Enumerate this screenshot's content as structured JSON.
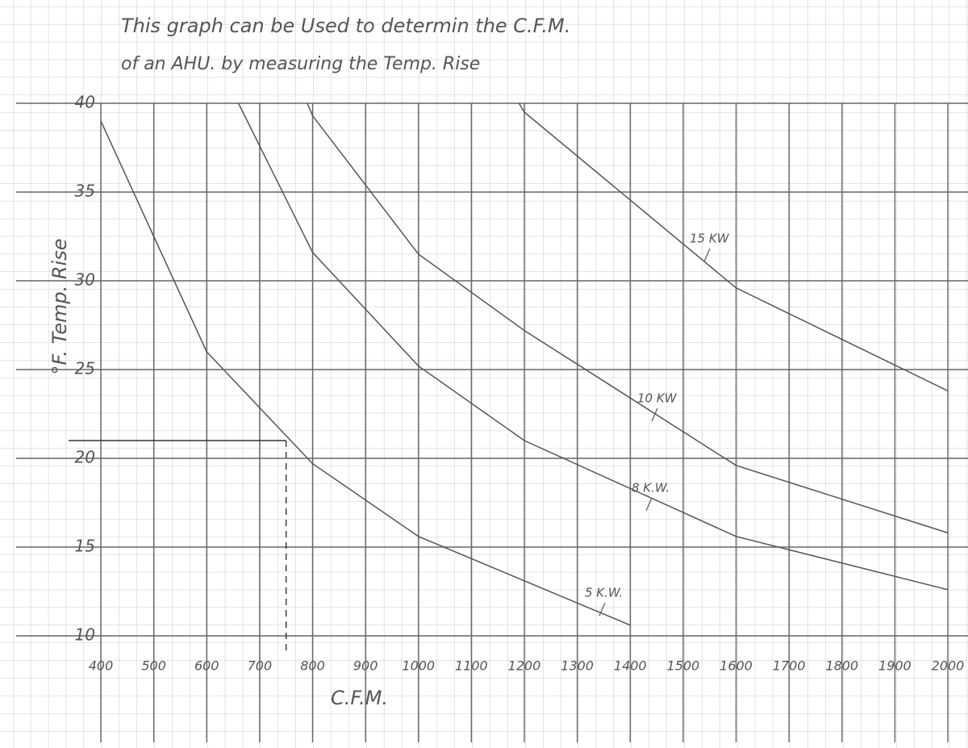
{
  "chart_data": {
    "type": "line",
    "title": "This graph can be Used to determin the C.F.M.",
    "subtitle": "of an AHU. by measuring the Temp. Rise",
    "x_label": "C.F.M.",
    "y_label": "°F. Temp. Rise",
    "xlim": [
      400,
      2000
    ],
    "ylim": [
      10,
      40
    ],
    "xticks": [
      400,
      500,
      600,
      700,
      800,
      900,
      1000,
      1100,
      1200,
      1300,
      1400,
      1500,
      1600,
      1700,
      1800,
      1900,
      2000
    ],
    "yticks": [
      10,
      15,
      20,
      25,
      30,
      35,
      40
    ],
    "grid": true,
    "series": [
      {
        "name": "5 K.W.",
        "color": "#555555",
        "x": [
          400,
          500,
          600,
          800,
          1000,
          1200,
          1400
        ],
        "values": [
          39,
          32.5,
          26,
          19.7,
          15.6,
          13.1,
          10.6
        ]
      },
      {
        "name": "8 K.W.",
        "color": "#555555",
        "x": [
          660,
          800,
          1000,
          1200,
          1600,
          2000
        ],
        "values": [
          40,
          31.6,
          25.2,
          21,
          15.6,
          12.6
        ]
      },
      {
        "name": "10 KW",
        "color": "#555555",
        "x": [
          790,
          800,
          1000,
          1200,
          1600,
          2000
        ],
        "values": [
          40,
          39.3,
          31.5,
          27.2,
          19.6,
          15.8
        ]
      },
      {
        "name": "15 KW",
        "color": "#555555",
        "x": [
          1190,
          1200,
          1600,
          2000
        ],
        "values": [
          40,
          39.5,
          29.6,
          23.8
        ]
      }
    ],
    "example": {
      "x": 750,
      "y": 21
    }
  }
}
